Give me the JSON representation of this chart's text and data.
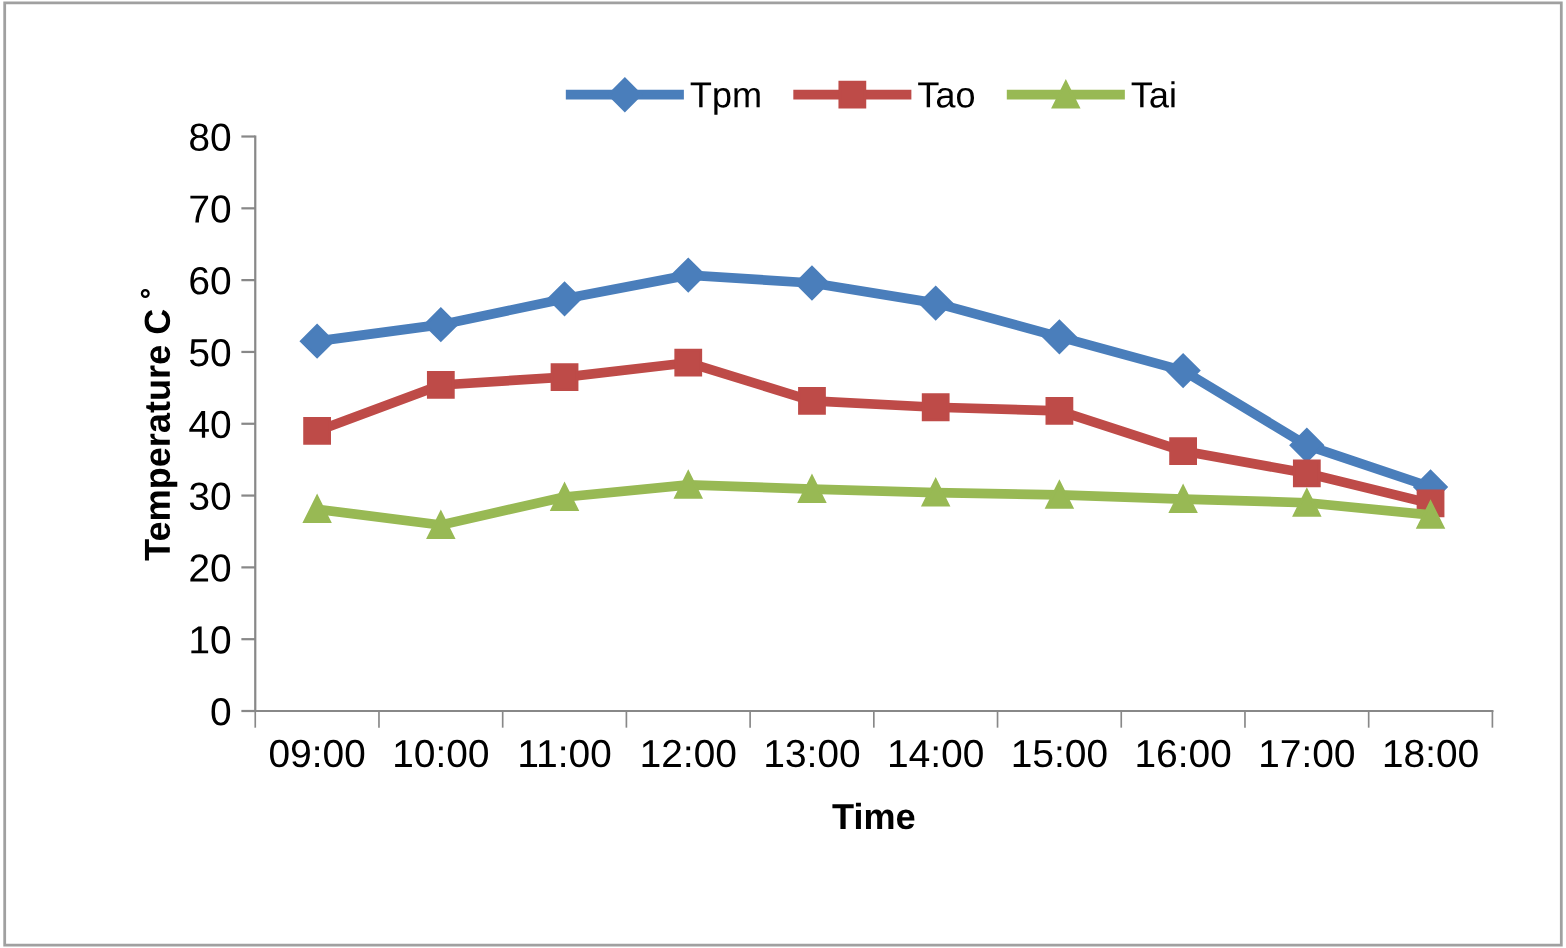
{
  "chart_data": {
    "type": "line",
    "xlabel": "Time",
    "ylabel": "Temperature C ˚",
    "categories": [
      "09:00",
      "10:00",
      "11:00",
      "12:00",
      "13:00",
      "14:00",
      "15:00",
      "16:00",
      "17:00",
      "18:00"
    ],
    "ylim": [
      0,
      80
    ],
    "yticks": [
      0,
      10,
      20,
      30,
      40,
      50,
      60,
      70,
      80
    ],
    "grid": false,
    "legend": "top",
    "series": [
      {
        "name": "Tpm",
        "color": "#4a7ebb",
        "marker": "diamond",
        "values": [
          51.5,
          53.8,
          57.4,
          60.7,
          59.6,
          56.8,
          52.1,
          47.4,
          37.0,
          31.2
        ]
      },
      {
        "name": "Tao",
        "color": "#be4b48",
        "marker": "square",
        "values": [
          39.0,
          45.4,
          46.5,
          48.5,
          43.2,
          42.3,
          41.8,
          36.2,
          33.1,
          28.9
        ]
      },
      {
        "name": "Tai",
        "color": "#98b954",
        "marker": "triangle",
        "values": [
          28.1,
          25.9,
          29.8,
          31.5,
          30.9,
          30.4,
          30.1,
          29.5,
          29.0,
          27.3
        ]
      }
    ]
  }
}
